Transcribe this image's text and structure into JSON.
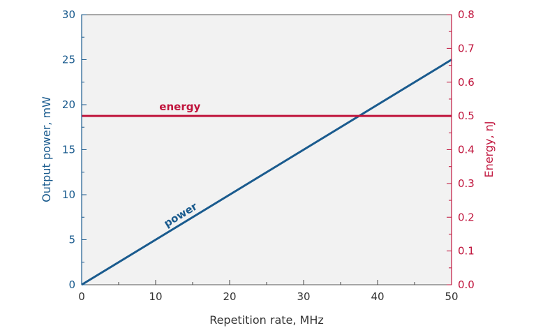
{
  "chart_data": {
    "type": "line",
    "x_axis": {
      "label": "Repetition rate, MHz",
      "range": [
        0,
        50
      ],
      "ticks": [
        "0",
        "10",
        "20",
        "30",
        "40",
        "50"
      ]
    },
    "y_axis_left": {
      "label": "Output power, mW",
      "range": [
        0,
        30
      ],
      "ticks": [
        "0",
        "5",
        "10",
        "15",
        "20",
        "25",
        "30"
      ],
      "color": "#1a5b8e"
    },
    "y_axis_right": {
      "label": "Energy, nJ",
      "range": [
        0,
        0.8
      ],
      "ticks": [
        "0.0",
        "0.1",
        "0.2",
        "0.3",
        "0.4",
        "0.5",
        "0.6",
        "0.7",
        "0.8"
      ],
      "color": "#c0143c"
    },
    "series": [
      {
        "name": "power",
        "axis": "left",
        "x": [
          0,
          50
        ],
        "y": [
          0,
          25
        ],
        "color": "#1a5b8e"
      },
      {
        "name": "energy",
        "axis": "right",
        "x": [
          0,
          50
        ],
        "y": [
          0.5,
          0.5
        ],
        "color": "#c0143c"
      }
    ],
    "plot_background": "#f2f2f2",
    "grid": false,
    "legend": "none"
  }
}
